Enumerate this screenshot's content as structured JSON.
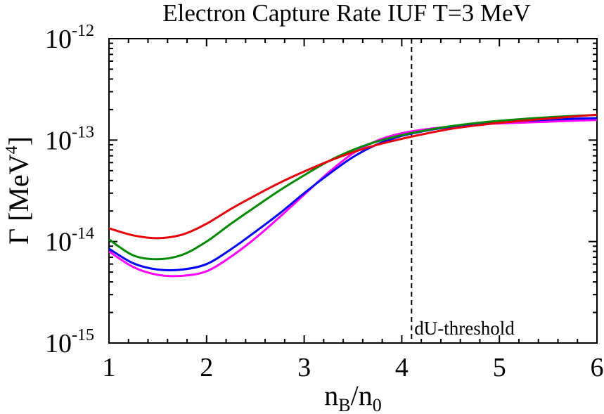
{
  "chart_data": {
    "type": "line",
    "title": "Electron Capture Rate  IUF  T=3 MeV",
    "xlabel": {
      "main": "n",
      "sub1": "B",
      "sep": "/n",
      "sub2": "0"
    },
    "ylabel": {
      "main": "Γ [MeV",
      "sup": "4",
      "close": "]"
    },
    "xlim": [
      1,
      6
    ],
    "ylim_log10": [
      -15,
      -12
    ],
    "yscale": "log",
    "x_ticks": [
      "1",
      "2",
      "3",
      "4",
      "5",
      "6"
    ],
    "y_ticks": [
      {
        "base": "10",
        "exp": "-15"
      },
      {
        "base": "10",
        "exp": "-14"
      },
      {
        "base": "10",
        "exp": "-13"
      },
      {
        "base": "10",
        "exp": "-12"
      }
    ],
    "vline": {
      "x": 4.1,
      "label": "dU-threshold",
      "style": "dashed"
    },
    "series": [
      {
        "name": "red",
        "color": "#e8000b",
        "x": [
          1.0,
          1.25,
          1.5,
          1.75,
          2.0,
          2.25,
          2.5,
          2.75,
          3.0,
          3.25,
          3.5,
          3.75,
          4.0,
          4.25,
          4.5,
          4.75,
          5.0,
          5.5,
          6.0
        ],
        "y": [
          1.35e-14,
          1.15e-14,
          1.08e-14,
          1.17e-14,
          1.5e-14,
          2.1e-14,
          2.85e-14,
          3.8e-14,
          4.9e-14,
          6.2e-14,
          7.6e-14,
          9e-14,
          1.03e-13,
          1.16e-13,
          1.29e-13,
          1.39e-13,
          1.48e-13,
          1.63e-13,
          1.78e-13
        ]
      },
      {
        "name": "green",
        "color": "#008b00",
        "x": [
          1.0,
          1.25,
          1.5,
          1.75,
          2.0,
          2.25,
          2.5,
          2.75,
          3.0,
          3.25,
          3.5,
          3.75,
          4.0,
          4.25,
          4.5,
          4.75,
          5.0,
          5.5,
          6.0
        ],
        "y": [
          1.05e-14,
          7.3e-15,
          6.7e-15,
          7.4e-15,
          1e-14,
          1.5e-14,
          2.2e-14,
          3.2e-14,
          4.5e-14,
          6.2e-14,
          8e-14,
          9.7e-14,
          1.12e-13,
          1.25e-13,
          1.37e-13,
          1.47e-13,
          1.55e-13,
          1.68e-13,
          1.77e-13
        ]
      },
      {
        "name": "blue",
        "color": "#0000ff",
        "x": [
          1.0,
          1.25,
          1.5,
          1.75,
          2.0,
          2.25,
          2.5,
          2.75,
          3.0,
          3.25,
          3.5,
          3.75,
          4.0,
          4.25,
          4.5,
          4.75,
          5.0,
          5.5,
          6.0
        ],
        "y": [
          8.5e-15,
          6.1e-15,
          5.3e-15,
          5.3e-15,
          6e-15,
          8.4e-15,
          1.25e-14,
          1.9e-14,
          3e-14,
          4.6e-14,
          6.8e-14,
          9.1e-14,
          1.1e-13,
          1.24e-13,
          1.35e-13,
          1.43e-13,
          1.5e-13,
          1.59e-13,
          1.65e-13
        ]
      },
      {
        "name": "magenta",
        "color": "#ff00ff",
        "x": [
          1.0,
          1.25,
          1.5,
          1.75,
          2.0,
          2.25,
          2.5,
          2.75,
          3.0,
          3.25,
          3.5,
          3.75,
          4.0,
          4.25,
          4.5,
          4.75,
          5.0,
          5.5,
          6.0
        ],
        "y": [
          8e-15,
          5.6e-15,
          4.7e-15,
          4.6e-15,
          5.1e-15,
          7.1e-15,
          1.08e-14,
          1.75e-14,
          2.9e-14,
          4.8e-14,
          7.4e-14,
          9.9e-14,
          1.17e-13,
          1.28e-13,
          1.36e-13,
          1.42e-13,
          1.46e-13,
          1.52e-13,
          1.58e-13
        ]
      }
    ]
  }
}
